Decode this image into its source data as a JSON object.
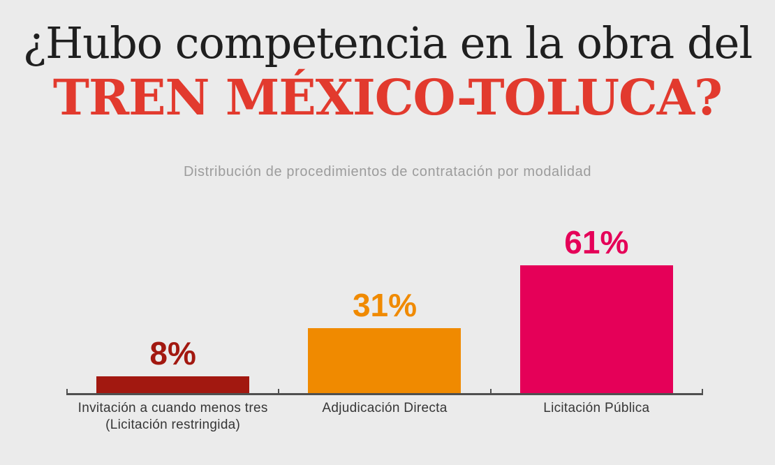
{
  "header": {
    "title_line1": "¿Hubo competencia en la obra del",
    "title_line2": "TREN MÉXICO-TOLUCA?",
    "subtitle": "Distribución de procedimientos de contratación por modalidad"
  },
  "colors": {
    "background": "#EBEBEB",
    "title_black": "#1F1F1F",
    "title_red": "#E23A2E",
    "subtitle_gray": "#9C9C9C",
    "axis_gray": "#4F4F4F",
    "category_label": "#363636"
  },
  "chart_data": {
    "type": "bar",
    "title": "¿Hubo competencia en la obra del TREN MÉXICO-TOLUCA?",
    "subtitle": "Distribución de procedimientos de contratación por modalidad",
    "categories": [
      "Invitación a cuando menos tres\n(Licitación restringida)",
      "Adjudicación Directa",
      "Licitación Pública"
    ],
    "values": [
      8,
      31,
      61
    ],
    "value_labels": [
      "8%",
      "31%",
      "61%"
    ],
    "bar_colors": [
      "#A21810",
      "#F08A00",
      "#E50058"
    ],
    "unit": "%",
    "ylim": [
      0,
      100
    ],
    "grid": false,
    "legend": false,
    "xlabel": "",
    "ylabel": ""
  }
}
